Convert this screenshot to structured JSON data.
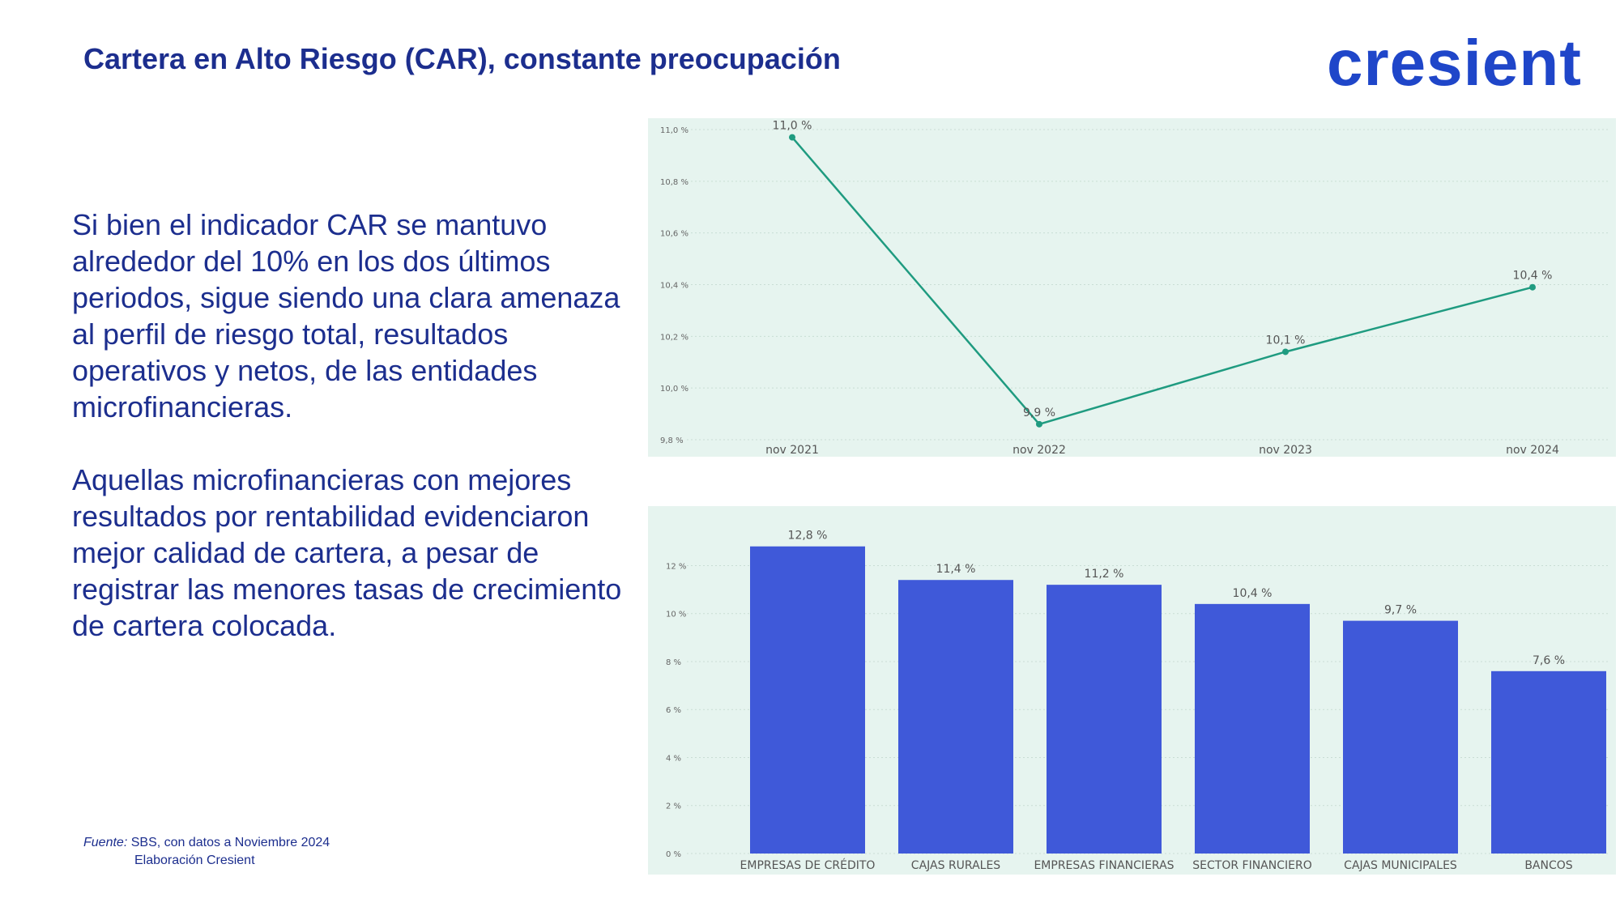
{
  "slide": {
    "title": "Cartera en Alto Riesgo (CAR), constante preocupación",
    "logo": "cresient",
    "paragraphs": [
      "Si bien el indicador CAR se mantuvo alrededor del 10% en los dos últimos periodos, sigue siendo una clara amenaza al perfil de riesgo total, resultados operativos y netos, de las entidades microfinancieras.",
      "Aquellas microfinancieras con mejores resultados por rentabilidad evidenciaron mejor calidad de cartera, a pesar de registrar las menores tasas de crecimiento de cartera colocada."
    ],
    "source_label": "Fuente:",
    "source_text": "SBS, con datos a Noviembre 2024",
    "source_line2": "Elaboración Cresient"
  },
  "colors": {
    "title": "#1c2e8e",
    "logo": "#1f46c9",
    "line": "#1f9b80",
    "bar": "#3f59d9",
    "chart_bg": "#e6f4ef"
  },
  "chart_data": [
    {
      "type": "line",
      "categories": [
        "nov 2021",
        "nov 2022",
        "nov 2023",
        "nov 2024"
      ],
      "values": [
        10.97,
        9.86,
        10.14,
        10.39
      ],
      "data_labels": [
        "11,0 %",
        "9,9 %",
        "10,1 %",
        "10,4 %"
      ],
      "ylim": [
        9.8,
        11.0
      ],
      "yticks": [
        9.8,
        10.0,
        10.2,
        10.4,
        10.6,
        10.8,
        11.0
      ],
      "ytick_labels": [
        "9,8 %",
        "10,0 %",
        "10,2 %",
        "10,4 %",
        "10,6 %",
        "10,8 %",
        "11,0 %"
      ],
      "grid": true
    },
    {
      "type": "bar",
      "categories": [
        "EMPRESAS DE CRÉDITO",
        "CAJAS RURALES",
        "EMPRESAS FINANCIERAS",
        "SECTOR FINANCIERO",
        "CAJAS MUNICIPALES",
        "BANCOS"
      ],
      "values": [
        12.8,
        11.4,
        11.2,
        10.4,
        9.7,
        7.6
      ],
      "data_labels": [
        "12,8 %",
        "11,4 %",
        "11,2 %",
        "10,4 %",
        "9,7 %",
        "7,6 %"
      ],
      "ylim": [
        0,
        13.5
      ],
      "yticks": [
        0,
        2,
        4,
        6,
        8,
        10,
        12
      ],
      "ytick_labels": [
        "0 %",
        "2 %",
        "4 %",
        "6 %",
        "8 %",
        "10 %",
        "12 %"
      ],
      "grid": true
    }
  ]
}
